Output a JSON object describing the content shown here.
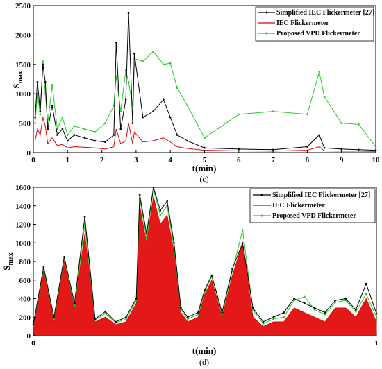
{
  "chart_data": [
    {
      "type": "line",
      "caption": "(c)",
      "xlabel": "t(min)",
      "ylabel_main": "S",
      "ylabel_sub": "max",
      "xlim": [
        0,
        10
      ],
      "ylim": [
        0,
        2500
      ],
      "xticks": [
        "0",
        "1",
        "2",
        "3",
        "4",
        "5",
        "6",
        "7",
        "8",
        "9",
        "10"
      ],
      "yticks": [
        "0",
        "500",
        "1000",
        "1500",
        "2000",
        "2500"
      ],
      "legend_position": "top-right",
      "series": [
        {
          "name": "Simplified IEC Flickermeter [27]",
          "color": "#000000",
          "x": [
            0.05,
            0.12,
            0.2,
            0.28,
            0.35,
            0.42,
            0.55,
            0.7,
            0.85,
            1.0,
            1.2,
            1.5,
            1.8,
            2.1,
            2.35,
            2.42,
            2.55,
            2.7,
            2.78,
            2.9,
            2.95,
            3.2,
            3.5,
            3.8,
            4.0,
            4.2,
            4.5,
            5.0,
            6.0,
            7.0,
            8.0,
            8.35,
            8.5,
            9.0,
            9.5,
            10.0
          ],
          "values": [
            600,
            1200,
            700,
            1500,
            1200,
            400,
            800,
            300,
            400,
            200,
            300,
            250,
            200,
            180,
            300,
            1870,
            400,
            900,
            2370,
            500,
            1680,
            600,
            700,
            900,
            600,
            300,
            200,
            80,
            60,
            50,
            100,
            300,
            80,
            60,
            50,
            40
          ]
        },
        {
          "name": "IEC Flickermeter",
          "color": "#e00000",
          "x": [
            0.05,
            0.12,
            0.2,
            0.28,
            0.35,
            0.42,
            0.55,
            0.7,
            0.85,
            1.0,
            1.2,
            1.5,
            1.8,
            2.1,
            2.35,
            2.42,
            2.55,
            2.7,
            2.78,
            2.9,
            2.95,
            3.2,
            3.5,
            3.8,
            4.0,
            4.2,
            4.5,
            5.0,
            6.0,
            7.0,
            8.0,
            8.35,
            8.5,
            9.0,
            9.5,
            10.0
          ],
          "values": [
            200,
            400,
            300,
            600,
            450,
            150,
            250,
            120,
            140,
            80,
            100,
            90,
            80,
            60,
            100,
            400,
            150,
            200,
            500,
            150,
            350,
            180,
            200,
            250,
            180,
            100,
            70,
            40,
            30,
            25,
            40,
            100,
            30,
            25,
            25,
            20
          ]
        },
        {
          "name": "Proposed VPD Flickermeter",
          "color": "#22cc22",
          "x": [
            0.05,
            0.12,
            0.2,
            0.28,
            0.35,
            0.42,
            0.55,
            0.7,
            0.85,
            1.0,
            1.2,
            1.5,
            1.8,
            2.1,
            2.35,
            2.42,
            2.55,
            2.7,
            2.78,
            2.9,
            2.95,
            3.2,
            3.5,
            3.8,
            4.0,
            4.2,
            4.5,
            5.0,
            6.0,
            7.0,
            8.0,
            8.35,
            8.5,
            9.0,
            9.5,
            10.0
          ],
          "values": [
            500,
            1000,
            650,
            1550,
            1000,
            500,
            1150,
            400,
            600,
            300,
            450,
            400,
            350,
            500,
            800,
            1300,
            700,
            1400,
            1200,
            800,
            1600,
            1550,
            1720,
            1500,
            1520,
            1100,
            800,
            250,
            650,
            700,
            650,
            1370,
            950,
            500,
            480,
            100
          ]
        }
      ]
    },
    {
      "type": "area",
      "caption": "(d)",
      "xlabel": "t(min)",
      "ylabel_main": "S",
      "ylabel_sub": "max",
      "xlim": [
        0,
        1
      ],
      "ylim": [
        0,
        1600
      ],
      "xticks": [
        "0",
        "1"
      ],
      "yticks": [
        "0",
        "200",
        "400",
        "600",
        "800",
        "1000",
        "1200",
        "1400",
        "1600"
      ],
      "legend_position": "top-right",
      "series": [
        {
          "name": "Simplified IEC Flickermeter [27]",
          "color": "#000000",
          "x": [
            0.0,
            0.03,
            0.06,
            0.09,
            0.12,
            0.15,
            0.18,
            0.21,
            0.24,
            0.27,
            0.3,
            0.31,
            0.33,
            0.35,
            0.37,
            0.39,
            0.41,
            0.43,
            0.45,
            0.48,
            0.5,
            0.52,
            0.55,
            0.58,
            0.61,
            0.64,
            0.67,
            0.7,
            0.73,
            0.76,
            0.79,
            0.82,
            0.85,
            0.88,
            0.91,
            0.94,
            0.97,
            1.0
          ],
          "values": [
            120,
            740,
            200,
            850,
            350,
            1280,
            180,
            260,
            150,
            200,
            400,
            1520,
            1100,
            1600,
            1350,
            1450,
            1000,
            300,
            200,
            250,
            500,
            650,
            250,
            720,
            1000,
            300,
            150,
            200,
            250,
            400,
            350,
            300,
            250,
            380,
            400,
            280,
            560,
            240
          ]
        },
        {
          "name": "IEC Flickermeter",
          "color": "#e00000",
          "x": [
            0.0,
            0.03,
            0.06,
            0.09,
            0.12,
            0.15,
            0.18,
            0.21,
            0.24,
            0.27,
            0.3,
            0.31,
            0.33,
            0.35,
            0.37,
            0.39,
            0.41,
            0.43,
            0.45,
            0.48,
            0.5,
            0.52,
            0.55,
            0.58,
            0.61,
            0.64,
            0.67,
            0.7,
            0.73,
            0.76,
            0.79,
            0.82,
            0.85,
            0.88,
            0.91,
            0.94,
            0.97,
            1.0
          ],
          "values": [
            100,
            700,
            150,
            800,
            300,
            1100,
            150,
            200,
            120,
            150,
            350,
            1400,
            1000,
            1500,
            1200,
            1300,
            900,
            250,
            150,
            200,
            450,
            600,
            200,
            650,
            1000,
            200,
            100,
            150,
            150,
            300,
            250,
            200,
            150,
            300,
            300,
            200,
            400,
            150
          ]
        },
        {
          "name": "Proposed VPD Flickermeter",
          "color": "#22cc22",
          "x": [
            0.0,
            0.03,
            0.06,
            0.09,
            0.12,
            0.15,
            0.18,
            0.21,
            0.24,
            0.27,
            0.3,
            0.31,
            0.33,
            0.35,
            0.37,
            0.39,
            0.41,
            0.43,
            0.45,
            0.48,
            0.5,
            0.52,
            0.55,
            0.58,
            0.61,
            0.64,
            0.67,
            0.7,
            0.73,
            0.76,
            0.79,
            0.82,
            0.85,
            0.88,
            0.91,
            0.94,
            0.97,
            1.0
          ],
          "values": [
            110,
            720,
            180,
            830,
            320,
            1200,
            170,
            240,
            140,
            180,
            380,
            1480,
            1050,
            1580,
            1300,
            1400,
            950,
            280,
            180,
            230,
            480,
            640,
            230,
            700,
            1140,
            280,
            130,
            180,
            200,
            380,
            420,
            280,
            230,
            360,
            380,
            260,
            450,
            200
          ]
        }
      ]
    }
  ]
}
